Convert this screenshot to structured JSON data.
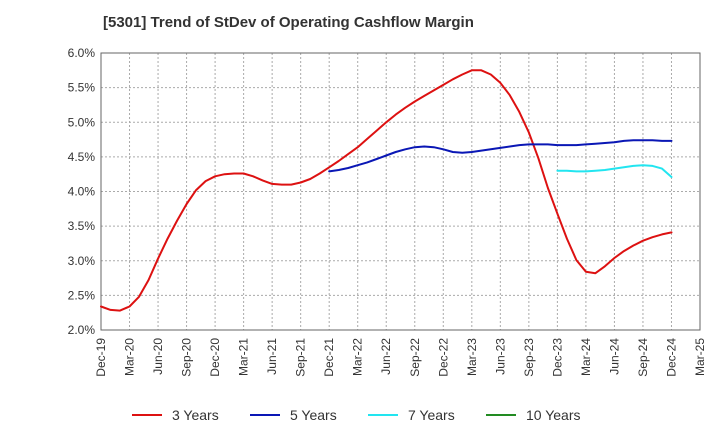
{
  "chart_data": {
    "type": "line",
    "title": "[5301]  Trend of StDev of Operating Cashflow Margin",
    "xlabel": "",
    "ylabel": "",
    "x_ticks": [
      "Dec-19",
      "Mar-20",
      "Jun-20",
      "Sep-20",
      "Dec-20",
      "Mar-21",
      "Jun-21",
      "Sep-21",
      "Dec-21",
      "Mar-22",
      "Jun-22",
      "Sep-22",
      "Dec-22",
      "Mar-23",
      "Jun-23",
      "Sep-23",
      "Dec-23",
      "Mar-24",
      "Jun-24",
      "Sep-24",
      "Dec-24",
      "Mar-25"
    ],
    "y_ticks": [
      "2.0%",
      "2.5%",
      "3.0%",
      "3.5%",
      "4.0%",
      "4.5%",
      "5.0%",
      "5.5%",
      "6.0%"
    ],
    "ylim": [
      2.0,
      6.0
    ],
    "grid": true,
    "legend_position": "bottom",
    "series": [
      {
        "name": "3 Years",
        "color": "#dd1111",
        "x": [
          "Dec-19",
          "Jan-20",
          "Feb-20",
          "Mar-20",
          "Apr-20",
          "May-20",
          "Jun-20",
          "Jul-20",
          "Aug-20",
          "Sep-20",
          "Oct-20",
          "Nov-20",
          "Dec-20",
          "Jan-21",
          "Feb-21",
          "Mar-21",
          "Apr-21",
          "May-21",
          "Jun-21",
          "Jul-21",
          "Aug-21",
          "Sep-21",
          "Oct-21",
          "Nov-21",
          "Dec-21",
          "Jan-22",
          "Feb-22",
          "Mar-22",
          "Apr-22",
          "May-22",
          "Jun-22",
          "Jul-22",
          "Aug-22",
          "Sep-22",
          "Oct-22",
          "Nov-22",
          "Dec-22",
          "Jan-23",
          "Feb-23",
          "Mar-23",
          "Apr-23",
          "May-23",
          "Jun-23",
          "Jul-23",
          "Aug-23",
          "Sep-23",
          "Oct-23",
          "Nov-23",
          "Dec-23",
          "Jan-24",
          "Feb-24",
          "Mar-24",
          "Apr-24",
          "May-24",
          "Jun-24",
          "Jul-24",
          "Aug-24",
          "Sep-24",
          "Oct-24",
          "Nov-24",
          "Dec-24"
        ],
        "values": [
          2.34,
          2.29,
          2.28,
          2.34,
          2.48,
          2.72,
          3.03,
          3.32,
          3.58,
          3.82,
          4.02,
          4.15,
          4.22,
          4.25,
          4.26,
          4.26,
          4.22,
          4.16,
          4.11,
          4.1,
          4.1,
          4.13,
          4.18,
          4.26,
          4.35,
          4.44,
          4.54,
          4.64,
          4.76,
          4.88,
          5.0,
          5.11,
          5.21,
          5.3,
          5.38,
          5.46,
          5.54,
          5.62,
          5.69,
          5.75,
          5.75,
          5.69,
          5.57,
          5.39,
          5.15,
          4.85,
          4.48,
          4.05,
          3.68,
          3.32,
          3.01,
          2.84,
          2.82,
          2.92,
          3.04,
          3.14,
          3.22,
          3.29,
          3.34,
          3.38,
          3.41
        ]
      },
      {
        "name": "5 Years",
        "color": "#0a17b5",
        "x": [
          "Dec-21",
          "Jan-22",
          "Feb-22",
          "Mar-22",
          "Apr-22",
          "May-22",
          "Jun-22",
          "Jul-22",
          "Aug-22",
          "Sep-22",
          "Oct-22",
          "Nov-22",
          "Dec-22",
          "Jan-23",
          "Feb-23",
          "Mar-23",
          "Apr-23",
          "May-23",
          "Jun-23",
          "Jul-23",
          "Aug-23",
          "Sep-23",
          "Oct-23",
          "Nov-23",
          "Dec-23",
          "Jan-24",
          "Feb-24",
          "Mar-24",
          "Apr-24",
          "May-24",
          "Jun-24",
          "Jul-24",
          "Aug-24",
          "Sep-24",
          "Oct-24",
          "Nov-24",
          "Dec-24"
        ],
        "values": [
          4.29,
          4.31,
          4.34,
          4.38,
          4.42,
          4.47,
          4.52,
          4.57,
          4.61,
          4.64,
          4.65,
          4.64,
          4.61,
          4.57,
          4.56,
          4.57,
          4.59,
          4.61,
          4.63,
          4.65,
          4.67,
          4.68,
          4.68,
          4.68,
          4.67,
          4.67,
          4.67,
          4.68,
          4.69,
          4.7,
          4.71,
          4.73,
          4.74,
          4.74,
          4.74,
          4.73,
          4.73
        ]
      },
      {
        "name": "7 Years",
        "color": "#22e5f0",
        "x": [
          "Dec-23",
          "Jan-24",
          "Feb-24",
          "Mar-24",
          "Apr-24",
          "May-24",
          "Jun-24",
          "Jul-24",
          "Aug-24",
          "Sep-24",
          "Oct-24",
          "Nov-24",
          "Dec-24"
        ],
        "values": [
          4.3,
          4.3,
          4.29,
          4.29,
          4.3,
          4.31,
          4.33,
          4.35,
          4.37,
          4.38,
          4.37,
          4.33,
          4.21
        ]
      },
      {
        "name": "10 Years",
        "color": "#228b22",
        "x": [],
        "values": []
      }
    ]
  }
}
